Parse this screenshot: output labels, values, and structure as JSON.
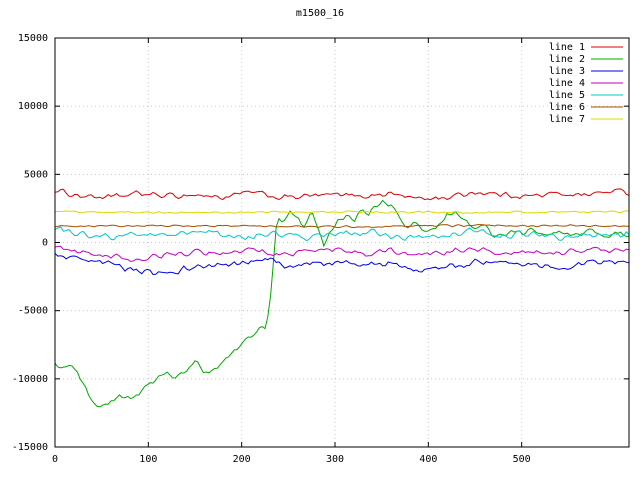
{
  "chart_data": {
    "type": "line",
    "title": "m1500_16",
    "xlabel": "",
    "ylabel": "",
    "xlim": [
      0,
      615
    ],
    "ylim": [
      -15000,
      15000
    ],
    "xticks": [
      0,
      100,
      200,
      300,
      400,
      500
    ],
    "yticks": [
      -15000,
      -10000,
      -5000,
      0,
      5000,
      10000,
      15000
    ],
    "grid": true,
    "grid_color": "#c8c8c8",
    "border_color": "#000000",
    "legend_position": "top-right",
    "series": [
      {
        "name": "line 1",
        "color": "#dd0000",
        "noise": 250,
        "anchors": [
          [
            0,
            3800
          ],
          [
            30,
            3400
          ],
          [
            60,
            3300
          ],
          [
            90,
            3600
          ],
          [
            120,
            3400
          ],
          [
            150,
            3500
          ],
          [
            180,
            3300
          ],
          [
            210,
            3700
          ],
          [
            240,
            3300
          ],
          [
            270,
            3400
          ],
          [
            300,
            3500
          ],
          [
            330,
            3400
          ],
          [
            360,
            3600
          ],
          [
            390,
            3200
          ],
          [
            420,
            3300
          ],
          [
            450,
            3700
          ],
          [
            480,
            3500
          ],
          [
            510,
            3400
          ],
          [
            540,
            3600
          ],
          [
            570,
            3500
          ],
          [
            600,
            3800
          ],
          [
            615,
            3600
          ]
        ]
      },
      {
        "name": "line 2",
        "color": "#00a800",
        "noise": 300,
        "anchors": [
          [
            0,
            -8800
          ],
          [
            8,
            -9200
          ],
          [
            16,
            -9000
          ],
          [
            25,
            -9800
          ],
          [
            35,
            -10900
          ],
          [
            45,
            -11800
          ],
          [
            52,
            -12100
          ],
          [
            60,
            -11600
          ],
          [
            70,
            -11300
          ],
          [
            80,
            -11600
          ],
          [
            90,
            -11000
          ],
          [
            100,
            -10400
          ],
          [
            110,
            -10000
          ],
          [
            120,
            -9700
          ],
          [
            130,
            -9900
          ],
          [
            140,
            -9400
          ],
          [
            150,
            -8800
          ],
          [
            158,
            -9400
          ],
          [
            166,
            -9700
          ],
          [
            175,
            -9000
          ],
          [
            185,
            -8500
          ],
          [
            195,
            -7800
          ],
          [
            205,
            -7000
          ],
          [
            212,
            -6700
          ],
          [
            220,
            -6300
          ],
          [
            226,
            -6500
          ],
          [
            230,
            -4500
          ],
          [
            234,
            -1500
          ],
          [
            238,
            1800
          ],
          [
            245,
            1400
          ],
          [
            252,
            2300
          ],
          [
            260,
            1600
          ],
          [
            268,
            1100
          ],
          [
            275,
            2500
          ],
          [
            282,
            1000
          ],
          [
            288,
            -400
          ],
          [
            295,
            900
          ],
          [
            303,
            1600
          ],
          [
            312,
            2100
          ],
          [
            320,
            1500
          ],
          [
            328,
            2400
          ],
          [
            336,
            2000
          ],
          [
            344,
            2600
          ],
          [
            352,
            3000
          ],
          [
            360,
            2800
          ],
          [
            368,
            1800
          ],
          [
            376,
            1000
          ],
          [
            384,
            1400
          ],
          [
            392,
            1100
          ],
          [
            400,
            700
          ],
          [
            410,
            1100
          ],
          [
            420,
            1900
          ],
          [
            430,
            2400
          ],
          [
            440,
            1500
          ],
          [
            450,
            800
          ],
          [
            460,
            1300
          ],
          [
            470,
            600
          ],
          [
            480,
            300
          ],
          [
            490,
            900
          ],
          [
            500,
            600
          ],
          [
            515,
            1000
          ],
          [
            530,
            300
          ],
          [
            545,
            800
          ],
          [
            560,
            400
          ],
          [
            575,
            900
          ],
          [
            590,
            200
          ],
          [
            605,
            700
          ],
          [
            615,
            400
          ]
        ]
      },
      {
        "name": "line 3",
        "color": "#0000e8",
        "noise": 300,
        "anchors": [
          [
            0,
            -900
          ],
          [
            30,
            -1400
          ],
          [
            60,
            -1600
          ],
          [
            90,
            -2100
          ],
          [
            110,
            -2400
          ],
          [
            140,
            -1900
          ],
          [
            170,
            -1700
          ],
          [
            200,
            -1600
          ],
          [
            230,
            -1200
          ],
          [
            250,
            -1900
          ],
          [
            270,
            -1600
          ],
          [
            300,
            -1400
          ],
          [
            330,
            -1700
          ],
          [
            360,
            -1500
          ],
          [
            390,
            -2100
          ],
          [
            420,
            -1900
          ],
          [
            450,
            -1400
          ],
          [
            480,
            -1600
          ],
          [
            510,
            -1500
          ],
          [
            540,
            -1800
          ],
          [
            570,
            -1600
          ],
          [
            600,
            -1400
          ],
          [
            615,
            -1500
          ]
        ]
      },
      {
        "name": "line 4",
        "color": "#c000c0",
        "noise": 250,
        "anchors": [
          [
            0,
            -300
          ],
          [
            30,
            -800
          ],
          [
            60,
            -1000
          ],
          [
            90,
            -1300
          ],
          [
            120,
            -900
          ],
          [
            150,
            -700
          ],
          [
            180,
            -800
          ],
          [
            210,
            -500
          ],
          [
            240,
            -900
          ],
          [
            270,
            -700
          ],
          [
            300,
            -500
          ],
          [
            330,
            -800
          ],
          [
            360,
            -600
          ],
          [
            390,
            -900
          ],
          [
            420,
            -700
          ],
          [
            450,
            -500
          ],
          [
            480,
            -800
          ],
          [
            510,
            -600
          ],
          [
            540,
            -700
          ],
          [
            570,
            -500
          ],
          [
            600,
            -600
          ],
          [
            615,
            -500
          ]
        ]
      },
      {
        "name": "line 5",
        "color": "#00c8c8",
        "noise": 300,
        "anchors": [
          [
            0,
            1000
          ],
          [
            30,
            600
          ],
          [
            60,
            400
          ],
          [
            90,
            700
          ],
          [
            120,
            500
          ],
          [
            150,
            800
          ],
          [
            180,
            600
          ],
          [
            210,
            400
          ],
          [
            240,
            700
          ],
          [
            270,
            300
          ],
          [
            300,
            600
          ],
          [
            330,
            800
          ],
          [
            360,
            500
          ],
          [
            390,
            300
          ],
          [
            420,
            600
          ],
          [
            450,
            900
          ],
          [
            480,
            500
          ],
          [
            510,
            700
          ],
          [
            540,
            400
          ],
          [
            570,
            600
          ],
          [
            600,
            500
          ],
          [
            615,
            600
          ]
        ]
      },
      {
        "name": "line 6",
        "color": "#a05000",
        "noise": 90,
        "anchors": [
          [
            0,
            1200
          ],
          [
            150,
            1250
          ],
          [
            300,
            1150
          ],
          [
            450,
            1250
          ],
          [
            615,
            1200
          ]
        ]
      },
      {
        "name": "line 7",
        "color": "#d8d800",
        "noise": 90,
        "anchors": [
          [
            0,
            2250
          ],
          [
            150,
            2200
          ],
          [
            300,
            2250
          ],
          [
            450,
            2200
          ],
          [
            615,
            2250
          ]
        ]
      }
    ]
  }
}
